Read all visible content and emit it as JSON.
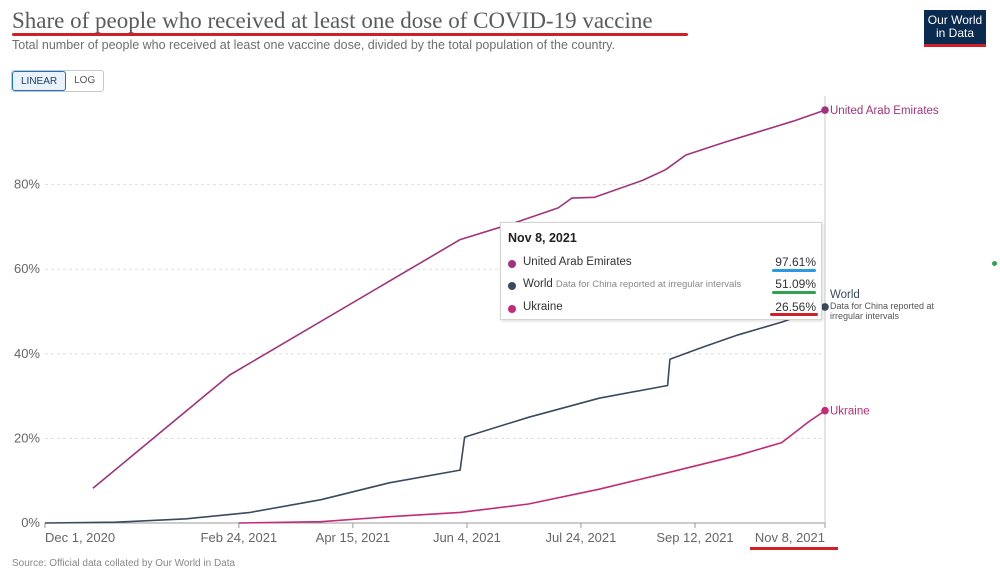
{
  "header": {
    "title": "Share of people who received at least one dose of COVID-19 vaccine",
    "subtitle": "Total number of people who received at least one vaccine dose, divided by the total population of the country.",
    "logo_line1": "Our World",
    "logo_line2": "in Data"
  },
  "scale_toggle": {
    "linear": "LINEAR",
    "log": "LOG"
  },
  "source": "Source: Official data collated by Our World in Data",
  "colors": {
    "uae": "#a2327d",
    "world": "#3a4a5e",
    "ukraine": "#c32a78",
    "annotation": "#d11f2a",
    "highlight_blue": "#2b9be0",
    "highlight_green": "#2ea44f"
  },
  "tooltip": {
    "date": "Nov 8, 2021",
    "rows": [
      {
        "name": "United Arab Emirates",
        "note": "",
        "value": "97.61%"
      },
      {
        "name": "World",
        "note": "Data for China reported at irregular intervals",
        "value": "51.09%"
      },
      {
        "name": "Ukraine",
        "note": "",
        "value": "26.56%"
      }
    ]
  },
  "chart_data": {
    "type": "line",
    "title": "Share of people who received at least one dose of COVID-19 vaccine",
    "xlabel": "",
    "ylabel": "",
    "x_range": [
      "2020-12-01",
      "2021-11-08"
    ],
    "ylim": [
      0,
      100
    ],
    "x_ticks": [
      "Dec 1, 2020",
      "Feb 24, 2021",
      "Apr 15, 2021",
      "Jun 4, 2021",
      "Jul 24, 2021",
      "Sep 12, 2021",
      "Nov 8, 2021"
    ],
    "y_ticks": [
      "0%",
      "20%",
      "40%",
      "60%",
      "80%"
    ],
    "grid": true,
    "series": [
      {
        "name": "United Arab Emirates",
        "end_label": "United Arab Emirates",
        "end_note": "",
        "color": "#a2327d",
        "points": [
          [
            "2020-12-22",
            8.2
          ],
          [
            "2021-02-20",
            35
          ],
          [
            "2021-06-01",
            67
          ],
          [
            "2021-06-25",
            71
          ],
          [
            "2021-07-14",
            74.5
          ],
          [
            "2021-07-20",
            76.8
          ],
          [
            "2021-07-30",
            77
          ],
          [
            "2021-08-20",
            81
          ],
          [
            "2021-08-30",
            83.5
          ],
          [
            "2021-09-08",
            87
          ],
          [
            "2021-09-25",
            90
          ],
          [
            "2021-10-10",
            92.5
          ],
          [
            "2021-10-25",
            95
          ],
          [
            "2021-11-08",
            97.61
          ]
        ]
      },
      {
        "name": "World",
        "end_label": "World",
        "end_note": "Data for China reported at irregular intervals",
        "color": "#3a4a5e",
        "points": [
          [
            "2020-12-01",
            0
          ],
          [
            "2021-01-01",
            0.2
          ],
          [
            "2021-02-01",
            1
          ],
          [
            "2021-03-01",
            2.5
          ],
          [
            "2021-04-01",
            5.5
          ],
          [
            "2021-05-01",
            9.5
          ],
          [
            "2021-06-01",
            12.5
          ],
          [
            "2021-06-03",
            20.3
          ],
          [
            "2021-07-01",
            25
          ],
          [
            "2021-08-01",
            29.5
          ],
          [
            "2021-08-31",
            32.5
          ],
          [
            "2021-09-01",
            38.7
          ],
          [
            "2021-09-15",
            41.5
          ],
          [
            "2021-10-01",
            44.5
          ],
          [
            "2021-10-20",
            47.5
          ],
          [
            "2021-11-08",
            51.09
          ]
        ]
      },
      {
        "name": "Ukraine",
        "end_label": "Ukraine",
        "end_note": "",
        "color": "#c32a78",
        "points": [
          [
            "2021-02-24",
            0
          ],
          [
            "2021-04-01",
            0.3
          ],
          [
            "2021-05-01",
            1.5
          ],
          [
            "2021-06-01",
            2.5
          ],
          [
            "2021-07-01",
            4.5
          ],
          [
            "2021-08-01",
            8
          ],
          [
            "2021-09-01",
            12
          ],
          [
            "2021-10-01",
            16
          ],
          [
            "2021-10-20",
            19
          ],
          [
            "2021-11-01",
            24
          ],
          [
            "2021-11-08",
            26.56
          ]
        ]
      }
    ]
  }
}
